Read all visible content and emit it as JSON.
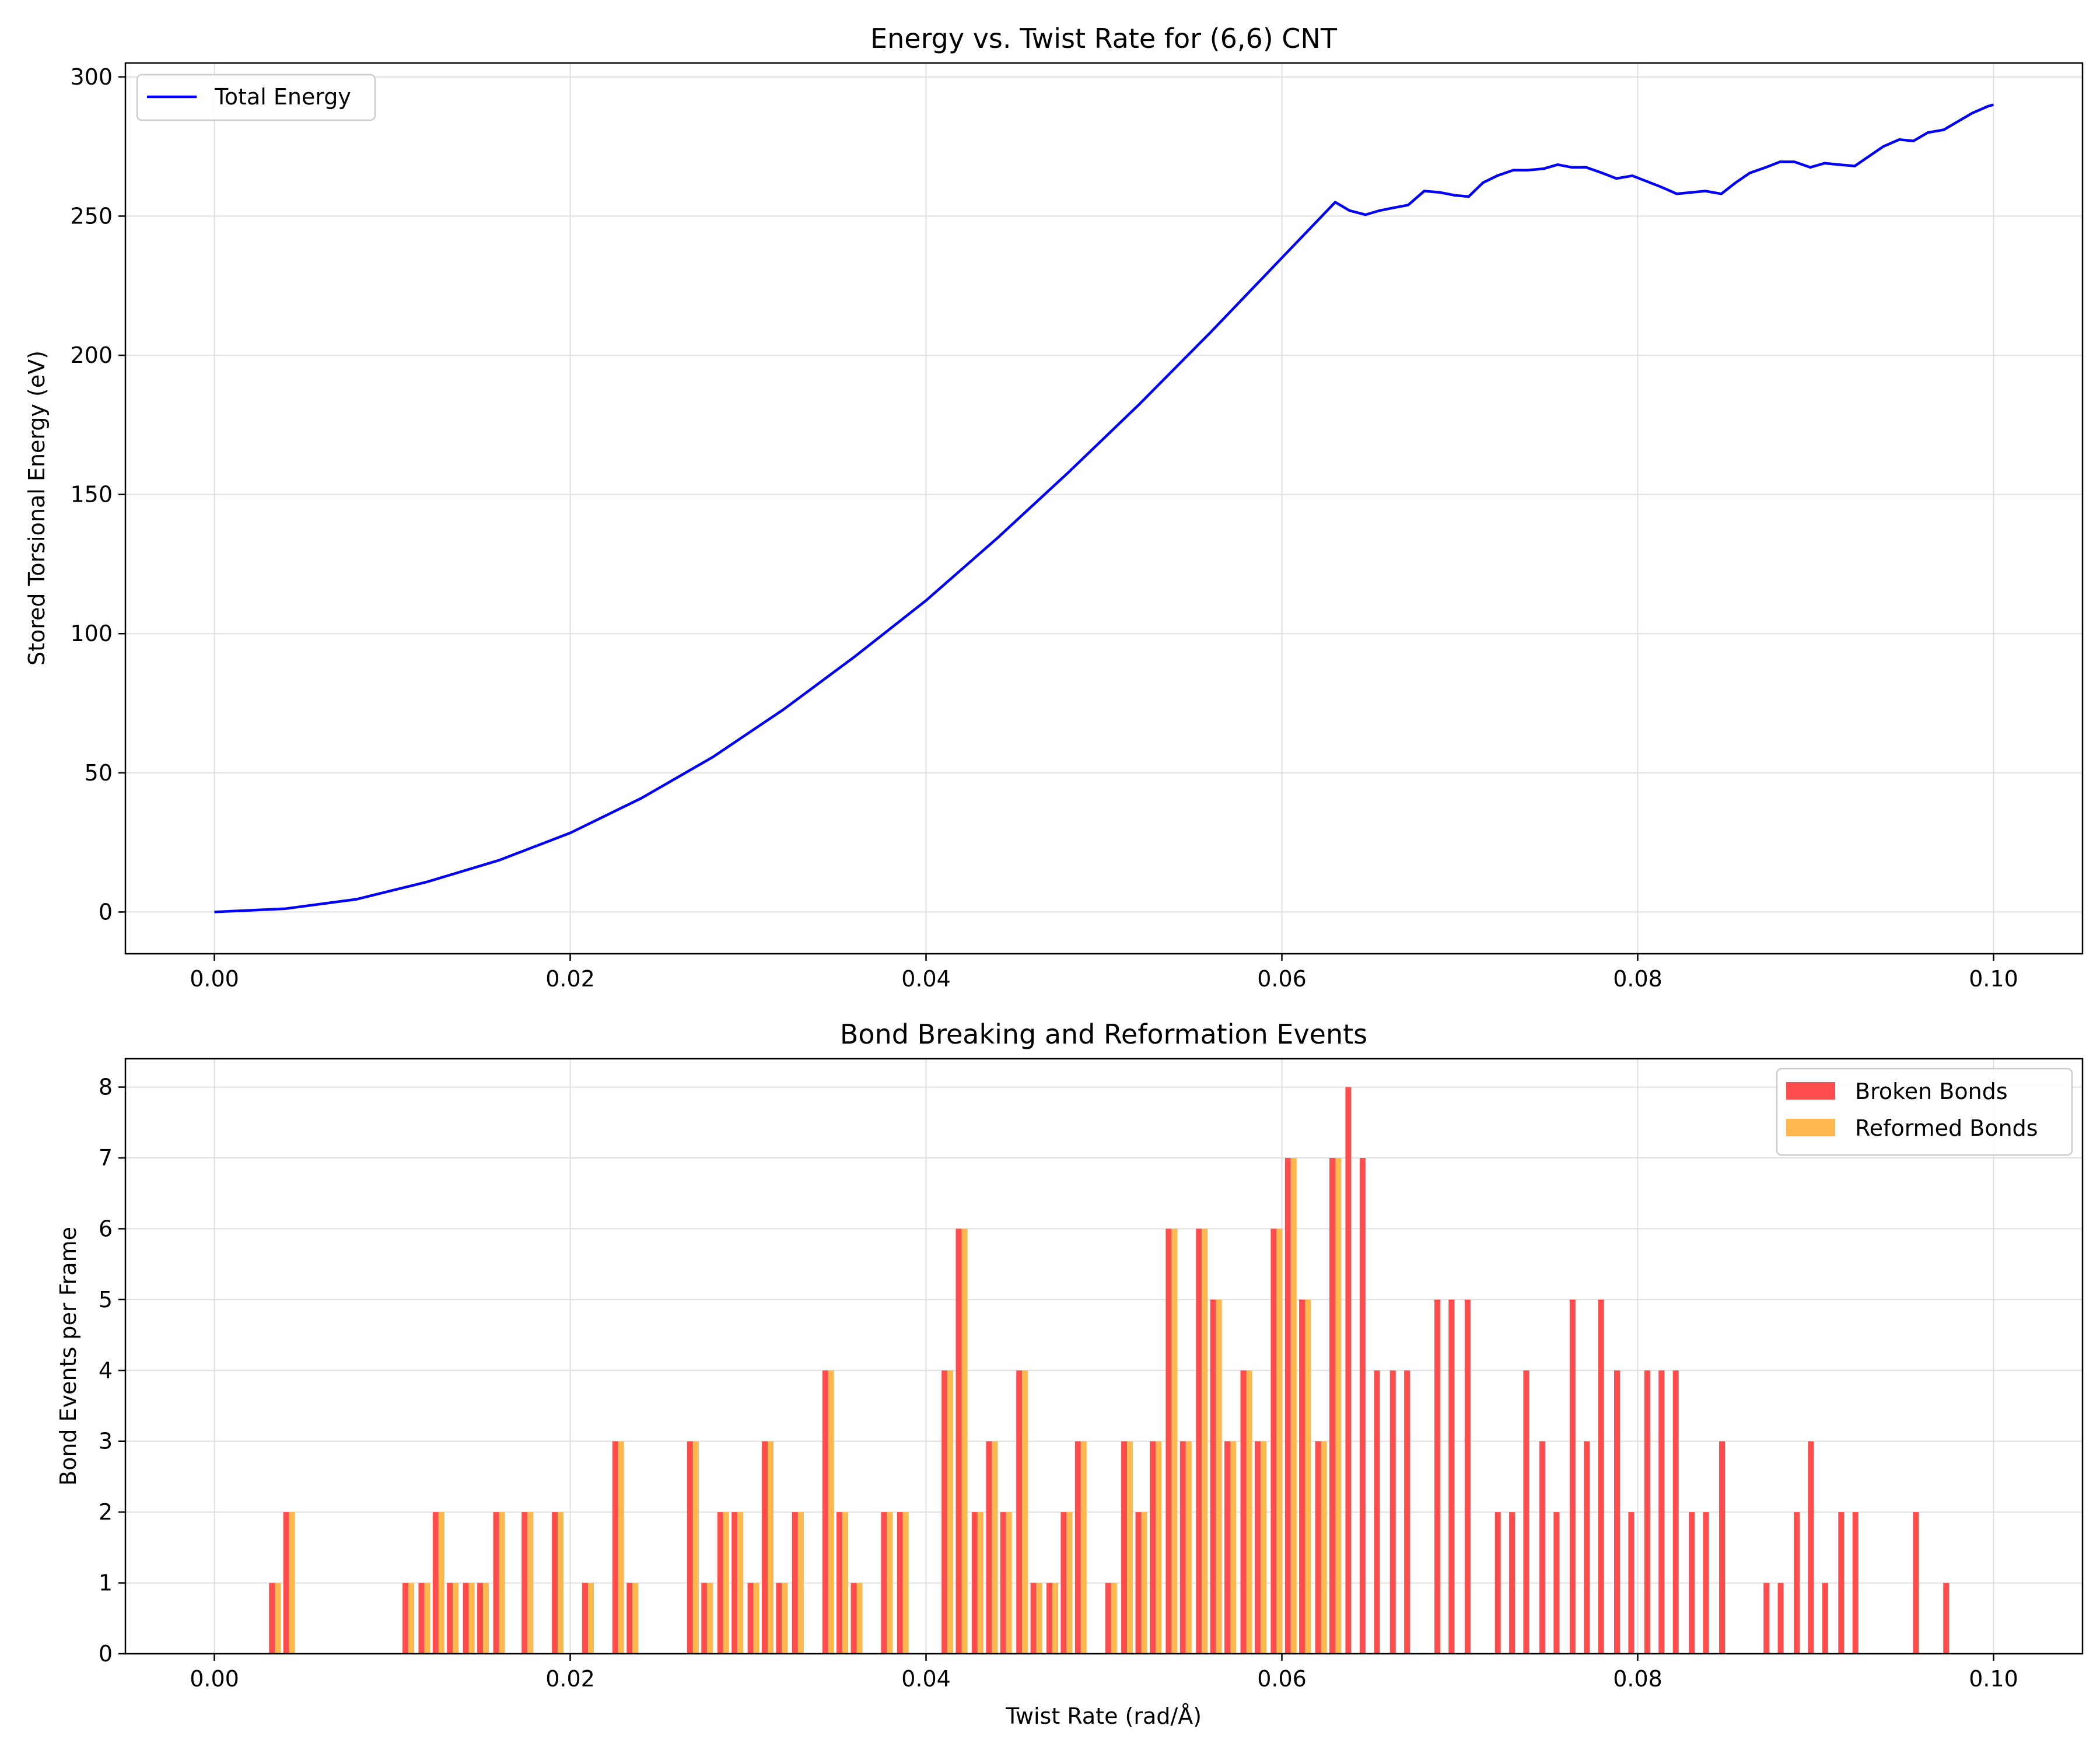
{
  "colors": {
    "energy_line": "#0000ff",
    "broken": "#ff4d4d",
    "reformed": "#ffb84d",
    "grid": "#e0e0e0"
  },
  "chart_data": [
    {
      "type": "line",
      "title": "Energy vs. Twist Rate for (6,6) CNT",
      "xlabel": "",
      "ylabel": "Stored Torsional Energy (eV)",
      "xlim": [
        -0.005,
        0.105
      ],
      "ylim": [
        -15,
        305
      ],
      "xticks": [
        0.0,
        0.02,
        0.04,
        0.06,
        0.08,
        0.1
      ],
      "xtick_labels": [
        "0.00",
        "0.02",
        "0.04",
        "0.06",
        "0.08",
        "0.10"
      ],
      "yticks": [
        0,
        50,
        100,
        150,
        200,
        250,
        300
      ],
      "ytick_labels": [
        "0",
        "50",
        "100",
        "150",
        "200",
        "250",
        "300"
      ],
      "grid": true,
      "legend_position": "top-left",
      "series": [
        {
          "name": "Total Energy",
          "x": [
            0.0,
            0.004,
            0.008,
            0.012,
            0.016,
            0.02,
            0.024,
            0.028,
            0.032,
            0.036,
            0.04,
            0.044,
            0.048,
            0.052,
            0.056,
            0.06,
            0.063,
            0.0638,
            0.0647,
            0.0655,
            0.0663,
            0.0671,
            0.068,
            0.0689,
            0.0697,
            0.0705,
            0.0713,
            0.0721,
            0.073,
            0.0738,
            0.0747,
            0.0755,
            0.0763,
            0.0771,
            0.078,
            0.0788,
            0.0797,
            0.0805,
            0.0813,
            0.0822,
            0.083,
            0.0838,
            0.0847,
            0.0855,
            0.0863,
            0.0872,
            0.088,
            0.0888,
            0.0897,
            0.0905,
            0.0913,
            0.0922,
            0.093,
            0.0938,
            0.0947,
            0.0955,
            0.0963,
            0.0972,
            0.098,
            0.0988,
            0.0997,
            0.1
          ],
          "y": [
            0.0,
            1.2,
            4.6,
            10.9,
            18.6,
            28.4,
            40.9,
            55.6,
            72.8,
            91.8,
            111.9,
            134.3,
            157.9,
            182.5,
            208.3,
            235.0,
            255.0,
            252.0,
            250.5,
            252.0,
            253.0,
            254.0,
            259.0,
            258.5,
            257.5,
            257.0,
            262.0,
            264.5,
            266.5,
            266.5,
            267.0,
            268.5,
            267.5,
            267.5,
            265.5,
            263.5,
            264.5,
            262.5,
            260.5,
            258.0,
            258.5,
            259.0,
            258.0,
            262.0,
            265.5,
            267.5,
            269.5,
            269.5,
            267.5,
            269.0,
            268.5,
            268.0,
            271.5,
            275.0,
            277.5,
            277.0,
            280.0,
            281.0,
            284.0,
            287.0,
            289.5,
            290.0
          ]
        }
      ]
    },
    {
      "type": "bar",
      "title": "Bond Breaking and Reformation Events",
      "xlabel": "Twist Rate (rad/Å)",
      "ylabel": "Bond Events per Frame",
      "xlim": [
        -0.005,
        0.105
      ],
      "ylim": [
        0,
        8.4
      ],
      "xticks": [
        0.0,
        0.02,
        0.04,
        0.06,
        0.08,
        0.1
      ],
      "xtick_labels": [
        "0.00",
        "0.02",
        "0.04",
        "0.06",
        "0.08",
        "0.10"
      ],
      "yticks": [
        0,
        1,
        2,
        3,
        4,
        5,
        6,
        7,
        8
      ],
      "ytick_labels": [
        "0",
        "1",
        "2",
        "3",
        "4",
        "5",
        "6",
        "7",
        "8"
      ],
      "grid": true,
      "legend_position": "top-right",
      "x": [
        0.0034,
        0.0042,
        0.0109,
        0.0118,
        0.0126,
        0.0134,
        0.0143,
        0.0151,
        0.016,
        0.0176,
        0.0193,
        0.021,
        0.0227,
        0.0235,
        0.0269,
        0.0277,
        0.0286,
        0.0294,
        0.0303,
        0.0311,
        0.0319,
        0.0328,
        0.0345,
        0.0353,
        0.0361,
        0.0378,
        0.0387,
        0.0412,
        0.042,
        0.0429,
        0.0437,
        0.0445,
        0.0454,
        0.0462,
        0.0471,
        0.0479,
        0.0487,
        0.0504,
        0.0513,
        0.0521,
        0.0529,
        0.0538,
        0.0546,
        0.0555,
        0.0563,
        0.0571,
        0.058,
        0.0588,
        0.0597,
        0.0605,
        0.0613,
        0.0622,
        0.063,
        0.0639,
        0.0647,
        0.0655,
        0.0664,
        0.0672,
        0.0689,
        0.0697,
        0.0706,
        0.0723,
        0.0731,
        0.0739,
        0.0748,
        0.0756,
        0.0765,
        0.0773,
        0.0781,
        0.079,
        0.0798,
        0.0807,
        0.0815,
        0.0823,
        0.0832,
        0.084,
        0.0849,
        0.0874,
        0.0882,
        0.0891,
        0.0899,
        0.0907,
        0.0916,
        0.0924,
        0.0958,
        0.0975
      ],
      "series": [
        {
          "name": "Broken Bonds",
          "values": [
            1,
            2,
            1,
            1,
            2,
            1,
            1,
            1,
            2,
            2,
            2,
            1,
            3,
            1,
            3,
            1,
            2,
            2,
            1,
            3,
            1,
            2,
            4,
            2,
            1,
            2,
            2,
            4,
            6,
            2,
            3,
            2,
            4,
            1,
            1,
            2,
            3,
            1,
            3,
            2,
            3,
            6,
            3,
            6,
            5,
            3,
            4,
            3,
            6,
            7,
            5,
            3,
            7,
            8,
            7,
            4,
            4,
            4,
            5,
            5,
            5,
            2,
            2,
            4,
            3,
            2,
            5,
            3,
            5,
            4,
            2,
            4,
            4,
            4,
            2,
            2,
            3,
            1,
            1,
            2,
            3,
            1,
            2,
            2,
            2,
            1
          ]
        },
        {
          "name": "Reformed Bonds",
          "values": [
            1,
            2,
            1,
            1,
            2,
            1,
            1,
            1,
            2,
            2,
            2,
            1,
            3,
            1,
            3,
            1,
            2,
            2,
            1,
            3,
            1,
            2,
            4,
            2,
            1,
            2,
            2,
            4,
            6,
            2,
            3,
            2,
            4,
            1,
            1,
            2,
            3,
            1,
            3,
            2,
            3,
            6,
            3,
            6,
            5,
            3,
            4,
            3,
            6,
            7,
            5,
            3,
            7,
            0,
            0,
            0,
            0,
            0,
            0,
            0,
            0,
            0,
            0,
            0,
            0,
            0,
            0,
            0,
            0,
            0,
            0,
            0,
            0,
            0,
            0,
            0,
            0,
            0,
            0,
            0,
            0,
            0,
            0,
            0,
            0,
            0
          ]
        }
      ]
    }
  ]
}
